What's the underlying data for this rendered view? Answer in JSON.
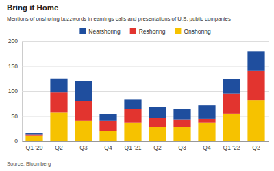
{
  "chart_data": {
    "type": "bar",
    "stacked": true,
    "grid": true,
    "title": "Bring it Home",
    "subtitle": "Mentions of onshoring buzzwords in earnings calls and presentations of U.S. public companies",
    "source": "Source: Bloomberg",
    "categories": [
      "Q1 '20",
      "Q2",
      "Q3",
      "Q4",
      "Q1 '21",
      "Q2",
      "Q3",
      "Q4",
      "Q1 '22",
      "Q2"
    ],
    "series": [
      {
        "name": "Nearshoring",
        "color": "#1f4e9e",
        "values": [
          2,
          28,
          40,
          14,
          19,
          22,
          20,
          27,
          29,
          39
        ]
      },
      {
        "name": "Reshoring",
        "color": "#e2342f",
        "values": [
          3,
          40,
          40,
          20,
          28,
          18,
          15,
          8,
          40,
          58
        ]
      },
      {
        "name": "Onshoring",
        "color": "#f6c200",
        "values": [
          10,
          57,
          40,
          20,
          36,
          28,
          28,
          36,
          55,
          82
        ]
      }
    ],
    "ylim": [
      0,
      200
    ],
    "yticks": [
      0,
      50,
      100,
      150,
      200
    ]
  }
}
